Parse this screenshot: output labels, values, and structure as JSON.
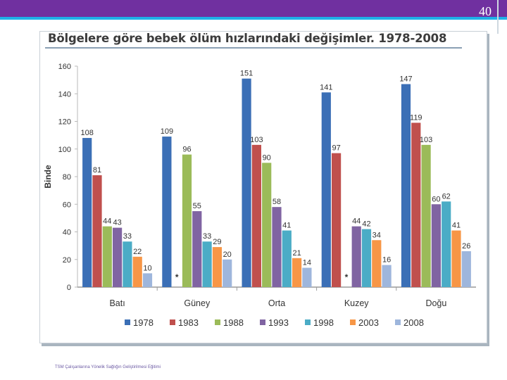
{
  "slide": {
    "number": "40",
    "footer": "TSM Çalışanlarına Yönelik Sağlığın Geliştirilmesi Eğitimi"
  },
  "colors": {
    "band": "#7030a0",
    "line": "#1fb0e8"
  },
  "chart_data": {
    "type": "bar",
    "title": "Bölgelere göre bebek ölüm hızlarındaki değişimler. 1978-2008",
    "ylabel": "Binde",
    "xlabel": "",
    "ylim": [
      0,
      160
    ],
    "yticks": [
      0,
      20,
      40,
      60,
      80,
      100,
      120,
      140,
      160
    ],
    "grid": false,
    "legend": "bottom",
    "categories": [
      "Batı",
      "Güney",
      "Orta",
      "Kuzey",
      "Doğu"
    ],
    "series": [
      {
        "name": "1978",
        "color": "#3b6fb6",
        "values": [
          108,
          109,
          151,
          141,
          147
        ]
      },
      {
        "name": "1983",
        "color": "#c0504d",
        "values": [
          81,
          null,
          103,
          97,
          119
        ]
      },
      {
        "name": "1988",
        "color": "#9bbb59",
        "values": [
          44,
          96,
          90,
          null,
          103
        ]
      },
      {
        "name": "1993",
        "color": "#8064a2",
        "values": [
          43,
          55,
          58,
          44,
          60
        ]
      },
      {
        "name": "1998",
        "color": "#4bacc6",
        "values": [
          33,
          33,
          41,
          42,
          62
        ]
      },
      {
        "name": "2003",
        "color": "#f79646",
        "values": [
          22,
          29,
          21,
          34,
          41
        ]
      },
      {
        "name": "2008",
        "color": "#9eb6dc",
        "values": [
          10,
          20,
          14,
          16,
          26
        ]
      }
    ],
    "annotations": [
      {
        "category": "Güney",
        "series": "1983",
        "text": "*"
      },
      {
        "category": "Kuzey",
        "series": "1988",
        "text": "*"
      }
    ]
  }
}
